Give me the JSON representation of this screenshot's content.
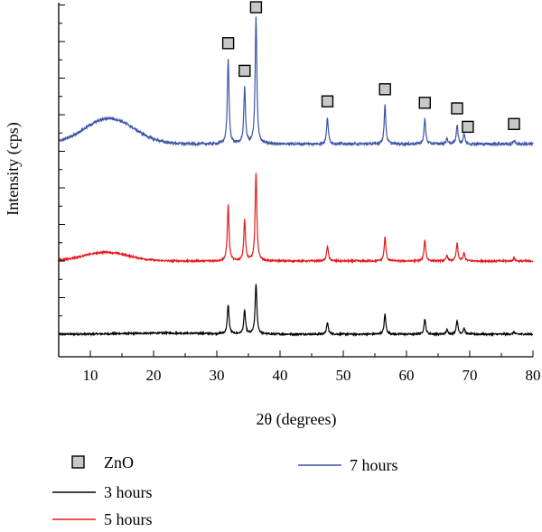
{
  "chart_data": {
    "type": "line",
    "xlabel": "2θ (degrees)",
    "ylabel": "Intensity (cps)",
    "xlim": [
      5,
      80
    ],
    "x_ticks": [
      10,
      20,
      30,
      40,
      50,
      60,
      70,
      80
    ],
    "y_tick_labels_shown": false,
    "marker_label": "ZnO",
    "series": [
      {
        "name": "3 hours",
        "color": "#000000",
        "baseline": 0.0,
        "hump": {
          "center": 22,
          "width": 9,
          "height": 0.03
        },
        "peaks": [
          {
            "x": 31.8,
            "h": 0.8
          },
          {
            "x": 34.4,
            "h": 0.65
          },
          {
            "x": 36.2,
            "h": 1.38
          },
          {
            "x": 47.5,
            "h": 0.32
          },
          {
            "x": 56.6,
            "h": 0.55
          },
          {
            "x": 62.9,
            "h": 0.42
          },
          {
            "x": 66.4,
            "h": 0.12
          },
          {
            "x": 68.0,
            "h": 0.38
          },
          {
            "x": 69.1,
            "h": 0.16
          },
          {
            "x": 77.0,
            "h": 0.06
          }
        ]
      },
      {
        "name": "5 hours",
        "color": "#e31a1c",
        "baseline": 2.0,
        "hump": {
          "center": 12.5,
          "width": 5,
          "height": 0.24
        },
        "peaks": [
          {
            "x": 31.8,
            "h": 1.52
          },
          {
            "x": 34.4,
            "h": 1.12
          },
          {
            "x": 36.2,
            "h": 2.42
          },
          {
            "x": 47.5,
            "h": 0.42
          },
          {
            "x": 56.6,
            "h": 0.65
          },
          {
            "x": 62.9,
            "h": 0.58
          },
          {
            "x": 66.4,
            "h": 0.15
          },
          {
            "x": 68.0,
            "h": 0.48
          },
          {
            "x": 69.1,
            "h": 0.22
          },
          {
            "x": 77.0,
            "h": 0.08
          }
        ]
      },
      {
        "name": "7 hours",
        "color": "#3c56a6",
        "baseline": 5.2,
        "hump": {
          "center": 13,
          "width": 5.5,
          "height": 0.7
        },
        "peaks": [
          {
            "x": 31.8,
            "h": 2.3
          },
          {
            "x": 34.4,
            "h": 1.52
          },
          {
            "x": 36.2,
            "h": 3.45
          },
          {
            "x": 47.5,
            "h": 0.72
          },
          {
            "x": 56.6,
            "h": 1.05
          },
          {
            "x": 62.9,
            "h": 0.68
          },
          {
            "x": 66.4,
            "h": 0.15
          },
          {
            "x": 68.0,
            "h": 0.52
          },
          {
            "x": 69.1,
            "h": 0.28
          },
          {
            "x": 77.0,
            "h": 0.1
          }
        ]
      }
    ],
    "zno_markers": [
      {
        "x": 31.8,
        "series": "7 hours"
      },
      {
        "x": 34.4,
        "series": "7 hours"
      },
      {
        "x": 36.2,
        "series": "7 hours"
      },
      {
        "x": 47.5,
        "series": "7 hours"
      },
      {
        "x": 56.6,
        "series": "7 hours"
      },
      {
        "x": 62.9,
        "series": "7 hours"
      },
      {
        "x": 68.0,
        "series": "7 hours"
      },
      {
        "x": 69.7,
        "series": "7 hours"
      },
      {
        "x": 77.0,
        "series": "7 hours"
      }
    ],
    "legend": [
      {
        "kind": "marker",
        "label": "ZnO"
      },
      {
        "kind": "line",
        "label": "3 hours",
        "color": "#000000"
      },
      {
        "kind": "line",
        "label": "5 hours",
        "color": "#e31a1c"
      },
      {
        "kind": "line",
        "label": "7 hours",
        "color": "#3c56a6"
      }
    ]
  }
}
